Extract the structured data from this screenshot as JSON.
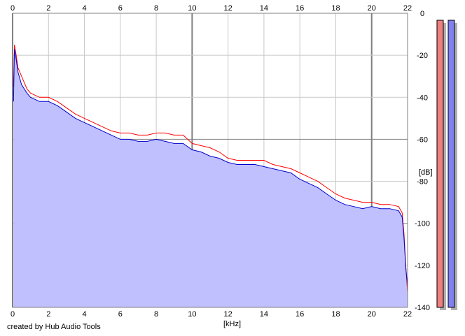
{
  "chart_data": {
    "type": "area",
    "xlabel": "[kHz]",
    "ylabel": "[dB]",
    "xlim": [
      0,
      22
    ],
    "ylim": [
      -140,
      0
    ],
    "x_ticks": [
      0,
      2,
      4,
      6,
      8,
      10,
      12,
      14,
      16,
      18,
      20,
      22
    ],
    "y_ticks": [
      0,
      -20,
      -40,
      -60,
      -80,
      -100,
      -120,
      -140
    ],
    "y_tick_labels": [
      "0",
      "-20",
      "-40",
      "-60",
      "-80",
      "-100",
      "-120",
      "-140"
    ],
    "grid": true,
    "x_axis_labels_position": "top-and-bottom",
    "y_axis_labels_position": "right",
    "x": [
      0.05,
      0.1,
      0.2,
      0.3,
      0.5,
      0.8,
      1.0,
      1.5,
      2.0,
      2.5,
      3.0,
      3.5,
      4.0,
      4.5,
      5.0,
      5.5,
      6.0,
      6.5,
      7.0,
      7.5,
      8.0,
      8.5,
      9.0,
      9.5,
      10.0,
      10.5,
      11.0,
      11.5,
      12.0,
      12.5,
      13.0,
      13.5,
      14.0,
      14.5,
      15.0,
      15.5,
      16.0,
      16.5,
      17.0,
      17.5,
      18.0,
      18.5,
      19.0,
      19.5,
      20.0,
      20.5,
      21.0,
      21.5,
      21.7,
      21.8,
      21.9,
      22.0
    ],
    "series": [
      {
        "values": [
          -35,
          -15,
          -20,
          -26,
          -30,
          -36,
          -38,
          -40,
          -40,
          -42,
          -45,
          -48,
          -50,
          -52,
          -54,
          -56,
          -57,
          -57,
          -58,
          -58,
          -57,
          -57,
          -58,
          -58,
          -62,
          -63,
          -64,
          -66,
          -69,
          -70,
          -70,
          -70,
          -70,
          -72,
          -73,
          -74,
          -76,
          -78,
          -80,
          -83,
          -86,
          -88,
          -89,
          -90,
          -90,
          -91,
          -91,
          -92,
          -95,
          -105,
          -120,
          -133
        ]
      },
      {
        "values": [
          -42,
          -17,
          -22,
          -28,
          -34,
          -38,
          -40,
          -42,
          -42,
          -44,
          -47,
          -50,
          -52,
          -54,
          -56,
          -58,
          -60,
          -60,
          -61,
          -61,
          -60,
          -61,
          -62,
          -62,
          -65,
          -66,
          -68,
          -69,
          -71,
          -72,
          -72,
          -72,
          -73,
          -74,
          -75,
          -76,
          -79,
          -81,
          -83,
          -86,
          -89,
          -91,
          -92,
          -93,
          -92,
          -93,
          -93,
          -94,
          -97,
          -107,
          -121,
          -130
        ]
      }
    ],
    "colors": {
      "series_1": "#ff0000",
      "series_2": "#0000cc",
      "fill": "#c0c0ff",
      "grid_minor": "#c8c8c8",
      "grid_major": "#808080",
      "meter_left": "#f08080",
      "meter_right": "#8080f0"
    },
    "meters": {
      "left_level": 1.0,
      "right_level": 1.0
    }
  },
  "footer": {
    "credit": "created by Hub Audio Tools"
  }
}
